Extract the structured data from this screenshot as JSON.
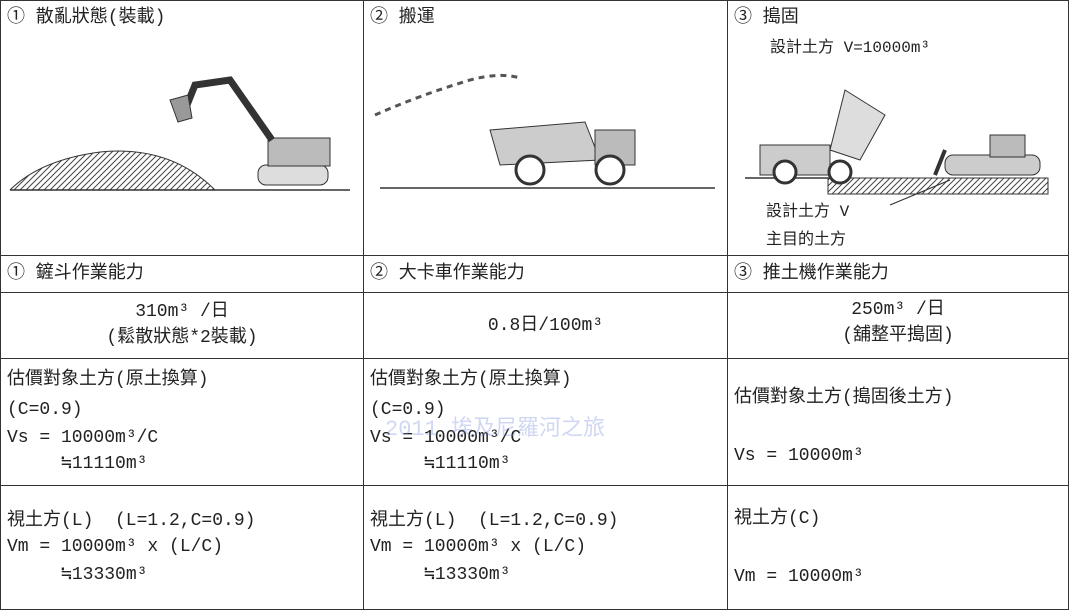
{
  "illustrations": [
    {
      "title": "① 散亂狀態(裝載)"
    },
    {
      "title": "② 搬運"
    },
    {
      "title": "③ 搗固",
      "labels": [
        "設計土方 V=10000m³",
        "設計土方 V",
        "主目的土方"
      ]
    }
  ],
  "table": {
    "rows": [
      [
        [
          "① 鏟斗作業能力"
        ],
        [
          "② 大卡車作業能力"
        ],
        [
          "③ 推土機作業能力"
        ]
      ],
      [
        [
          "310m³ /日",
          "(鬆散狀態*2裝載)"
        ],
        [
          "0.8日/100m³"
        ],
        [
          "250m³ /日",
          "(舖整平搗固)"
        ]
      ],
      [
        [
          "估價對象土方(原土換算)",
          "(C=0.9)",
          "Vs = 10000m³/C",
          "≒11110m³"
        ],
        [
          "估價對象土方(原土換算)",
          "(C=0.9)",
          "Vs = 10000m³/C",
          "≒11110m³"
        ],
        [
          "估價對象土方(搗固後土方)",
          "Vs = 10000m³"
        ]
      ],
      [
        [
          "視土方(L)  (L=1.2,C=0.9)",
          "Vm = 10000m³ x (L/C)",
          "≒13330m³"
        ],
        [
          "視土方(L)  (L=1.2,C=0.9)",
          "Vm = 10000m³ x (L/C)",
          "≒13330m³"
        ],
        [
          "視土方(C)",
          "Vm = 10000m³"
        ]
      ]
    ]
  },
  "watermark": "2011 埃及尼羅河之旅"
}
